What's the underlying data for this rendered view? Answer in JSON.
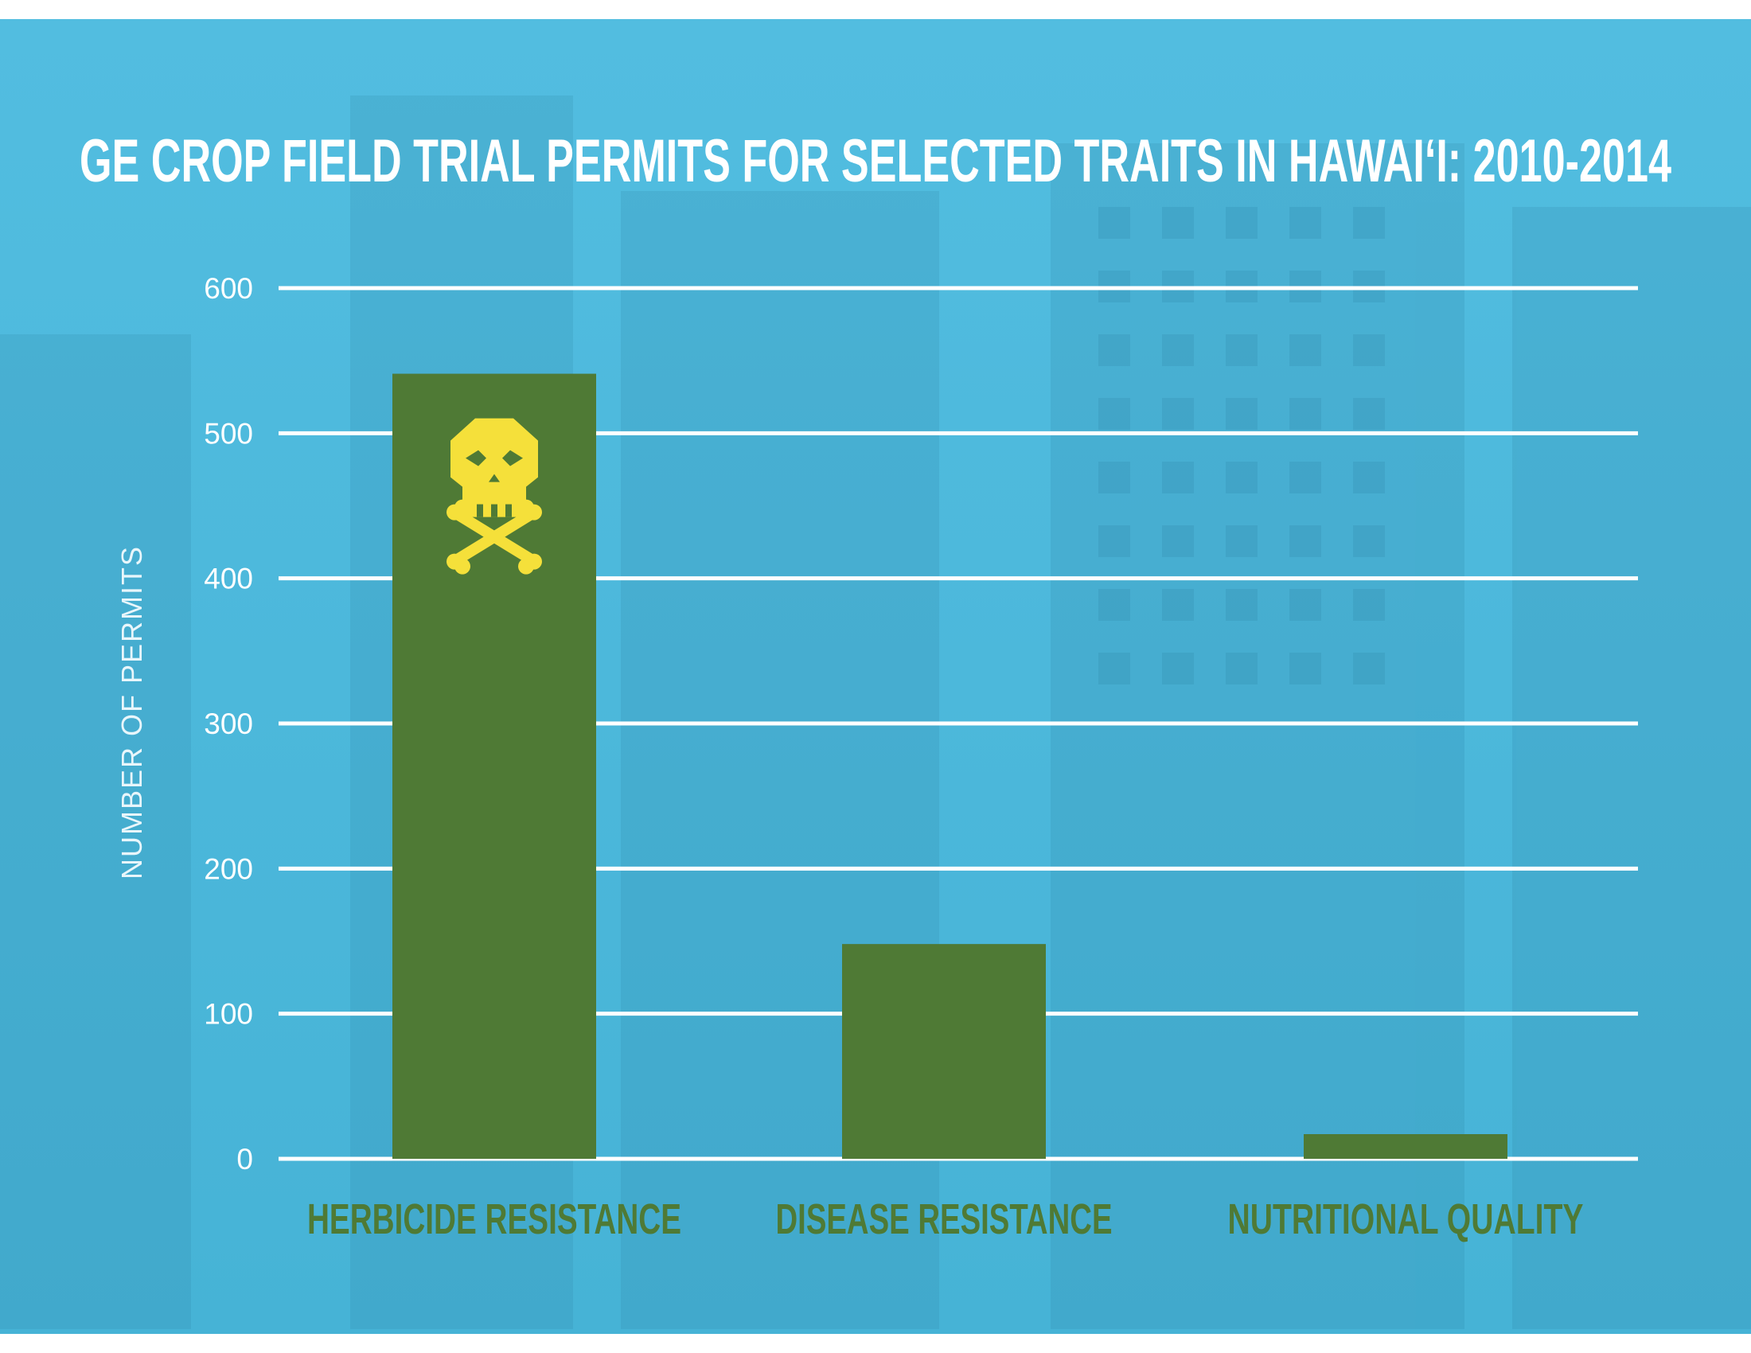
{
  "chart_data": {
    "type": "bar",
    "title": "GE CROP FIELD TRIAL PERMITS FOR SELECTED TRAITS IN HAWAI‘I: 2010-2014",
    "xlabel": "",
    "ylabel": "NUMBER OF PERMITS",
    "categories": [
      "HERBICIDE RESISTANCE",
      "DISEASE RESISTANCE",
      "NUTRITIONAL QUALITY"
    ],
    "values": [
      541,
      148,
      17
    ],
    "ylim": [
      0,
      600
    ],
    "yticks": [
      0,
      100,
      200,
      300,
      400,
      500,
      600
    ],
    "grid": true,
    "legend": "none",
    "annotations": [
      {
        "category": "HERBICIDE RESISTANCE",
        "icon": "skull-crossbones-icon"
      }
    ],
    "colors": {
      "background": "#4bb8db",
      "bar": "#4f7a35",
      "grid": "#ffffff",
      "title": "#ffffff",
      "tick_label": "#ffffff",
      "axis_label": "#e8f6fb",
      "category_label": "#4f7a35",
      "icon": "#f5e03a"
    }
  }
}
